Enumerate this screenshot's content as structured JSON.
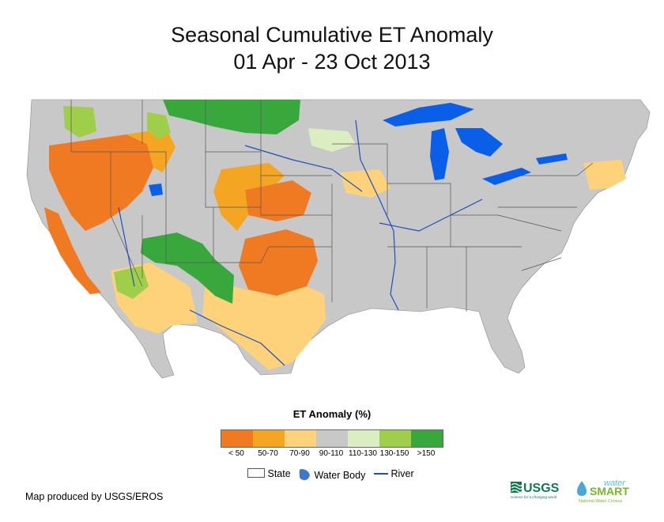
{
  "title": {
    "line1": "Seasonal Cumulative ET Anomaly",
    "line2": "01 Apr - 23 Oct 2013"
  },
  "legend": {
    "title": "ET Anomaly (%)",
    "classes": [
      {
        "label": "< 50",
        "color": "#f07a22"
      },
      {
        "label": "50-70",
        "color": "#f4a623"
      },
      {
        "label": "70-90",
        "color": "#fdd27a"
      },
      {
        "label": "90-110",
        "color": "#c8c8c8"
      },
      {
        "label": "110-130",
        "color": "#dbeec1"
      },
      {
        "label": "130-150",
        "color": "#9fce4a"
      },
      {
        "label": ">150",
        "color": "#38a83d"
      }
    ]
  },
  "key": {
    "state": "State",
    "water_body": "Water Body",
    "river": "River"
  },
  "colors": {
    "water": "#0a5fe8",
    "river": "#1f4fb8",
    "state_line": "#555555"
  },
  "credit": "Map produced by USGS/EROS",
  "logos": {
    "usgs": "USGS",
    "usgs_tagline": "science for a changing world",
    "water_top": "water",
    "water_main": "SMART",
    "water_sub": "National Water Census"
  }
}
